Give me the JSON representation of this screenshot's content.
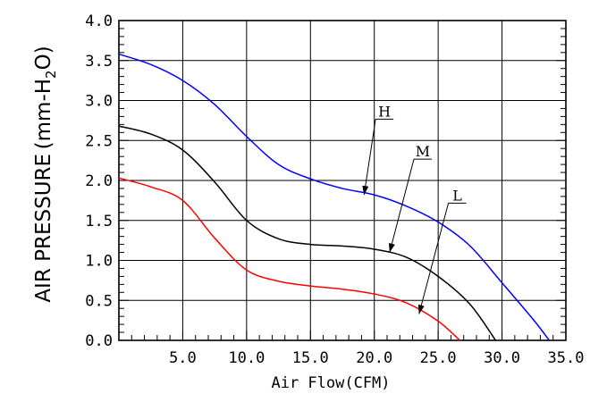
{
  "chart_data": {
    "type": "line",
    "xlabel": "Air Flow(CFM)",
    "ylabel_parts": [
      "AIR PRESSURE (mm-H",
      "2",
      "O)"
    ],
    "xlim": [
      0,
      35
    ],
    "ylim": [
      0,
      4.0
    ],
    "x_ticks": [
      "5.0",
      "10.0",
      "15.0",
      "20.0",
      "25.0",
      "30.0",
      "35.0"
    ],
    "x_tick_values": [
      5,
      10,
      15,
      20,
      25,
      30,
      35
    ],
    "y_ticks": [
      "0.0",
      "0.5",
      "1.0",
      "1.5",
      "2.0",
      "2.5",
      "3.0",
      "3.5",
      "4.0"
    ],
    "y_tick_values": [
      0,
      0.5,
      1.0,
      1.5,
      2.0,
      2.5,
      3.0,
      3.5,
      4.0
    ],
    "grid": true,
    "series": [
      {
        "name": "H",
        "color": "#0000ff",
        "label_at": [
          20.8,
          2.8
        ],
        "arrow_tip": [
          19.2,
          1.82
        ],
        "points": [
          [
            0,
            3.58
          ],
          [
            2.5,
            3.45
          ],
          [
            5,
            3.25
          ],
          [
            7.5,
            2.95
          ],
          [
            10,
            2.55
          ],
          [
            12.5,
            2.2
          ],
          [
            15,
            2.02
          ],
          [
            17.5,
            1.9
          ],
          [
            20,
            1.82
          ],
          [
            22.5,
            1.68
          ],
          [
            25,
            1.48
          ],
          [
            27.5,
            1.18
          ],
          [
            30,
            0.72
          ],
          [
            32.5,
            0.25
          ],
          [
            33.7,
            0
          ]
        ]
      },
      {
        "name": "M",
        "color": "#000000",
        "label_at": [
          23.8,
          2.3
        ],
        "arrow_tip": [
          21.2,
          1.1
        ],
        "points": [
          [
            0,
            2.68
          ],
          [
            2.5,
            2.58
          ],
          [
            5,
            2.38
          ],
          [
            7.5,
            1.98
          ],
          [
            10,
            1.5
          ],
          [
            12.5,
            1.27
          ],
          [
            15,
            1.2
          ],
          [
            17.5,
            1.18
          ],
          [
            20,
            1.14
          ],
          [
            22.5,
            1.04
          ],
          [
            25,
            0.8
          ],
          [
            27.5,
            0.45
          ],
          [
            29.5,
            0
          ]
        ]
      },
      {
        "name": "L",
        "color": "#ff0000",
        "label_at": [
          26.5,
          1.75
        ],
        "arrow_tip": [
          23.5,
          0.33
        ],
        "points": [
          [
            0,
            2.03
          ],
          [
            2.5,
            1.92
          ],
          [
            5,
            1.75
          ],
          [
            7.5,
            1.28
          ],
          [
            10,
            0.88
          ],
          [
            12.5,
            0.74
          ],
          [
            15,
            0.68
          ],
          [
            17.5,
            0.64
          ],
          [
            20,
            0.58
          ],
          [
            22.5,
            0.47
          ],
          [
            25,
            0.24
          ],
          [
            26.7,
            0
          ]
        ]
      }
    ]
  }
}
